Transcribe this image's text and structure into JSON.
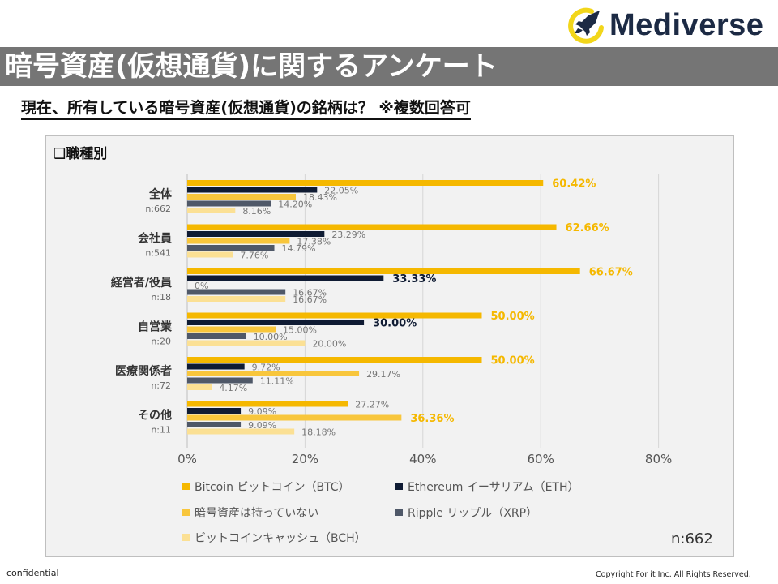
{
  "brand": {
    "name": "Mediverse",
    "primary_color": "#1c2a44",
    "accent_color": "#f2d61a"
  },
  "title": "暗号資産(仮想通貨)に関するアンケート",
  "subtitle": "現在、所有している暗号資産(仮想通貨)の銘柄は？ ※複数回答可",
  "section_label": "❑職種別",
  "sample_total": "n:662",
  "footer": {
    "left": "confidential",
    "right": "Copyright For it Inc. All Rights Reserved."
  },
  "chart_data": {
    "type": "bar",
    "orientation": "horizontal",
    "xlim": [
      0,
      80
    ],
    "x_ticks": [
      "0%",
      "20%",
      "40%",
      "60%",
      "80%"
    ],
    "categories": [
      {
        "name": "全体",
        "n": "n:662"
      },
      {
        "name": "会社員",
        "n": "n:541"
      },
      {
        "name": "経営者/役員",
        "n": "n:18"
      },
      {
        "name": "自営業",
        "n": "n:20"
      },
      {
        "name": "医療関係者",
        "n": "n:72"
      },
      {
        "name": "その他",
        "n": "n:11"
      }
    ],
    "series": [
      {
        "name": "Bitcoin ビットコイン（BTC）",
        "color": "#f5b800",
        "values": [
          60.42,
          62.66,
          66.67,
          50.0,
          50.0,
          27.27
        ],
        "labels": [
          "60.42%",
          "62.66%",
          "66.67%",
          "50.00%",
          "50.00%",
          "27.27%"
        ]
      },
      {
        "name": "Ethereum イーサリアム（ETH）",
        "color": "#0f1b33",
        "values": [
          22.05,
          23.29,
          33.33,
          30.0,
          9.72,
          9.09
        ],
        "labels": [
          "22.05%",
          "23.29%",
          "33.33%",
          "30.00%",
          "9.72%",
          "9.09%"
        ]
      },
      {
        "name": "暗号資産は持っていない",
        "color": "#f8c63c",
        "values": [
          18.43,
          17.38,
          0,
          15.0,
          29.17,
          36.36
        ],
        "labels": [
          "18.43%",
          "17.38%",
          "0%",
          "15.00%",
          "29.17%",
          "36.36%"
        ]
      },
      {
        "name": "Ripple リップル（XRP）",
        "color": "#4f5868",
        "values": [
          14.2,
          14.79,
          16.67,
          10.0,
          11.11,
          9.09
        ],
        "labels": [
          "14.20%",
          "14.79%",
          "16.67%",
          "10.00%",
          "11.11%",
          "9.09%"
        ]
      },
      {
        "name": "ビットコインキャッシュ（BCH）",
        "color": "#fbe094",
        "values": [
          8.16,
          7.76,
          16.67,
          20.0,
          4.17,
          18.18
        ],
        "labels": [
          "8.16%",
          "7.76%",
          "16.67%",
          "20.00%",
          "4.17%",
          "18.18%"
        ]
      }
    ],
    "highlight_labels": [
      [
        true,
        false,
        false,
        false,
        false
      ],
      [
        true,
        false,
        false,
        false,
        false
      ],
      [
        true,
        true,
        false,
        false,
        false
      ],
      [
        true,
        true,
        false,
        false,
        false
      ],
      [
        true,
        false,
        false,
        false,
        false
      ],
      [
        false,
        false,
        true,
        false,
        false
      ]
    ],
    "legend_position": "bottom"
  }
}
